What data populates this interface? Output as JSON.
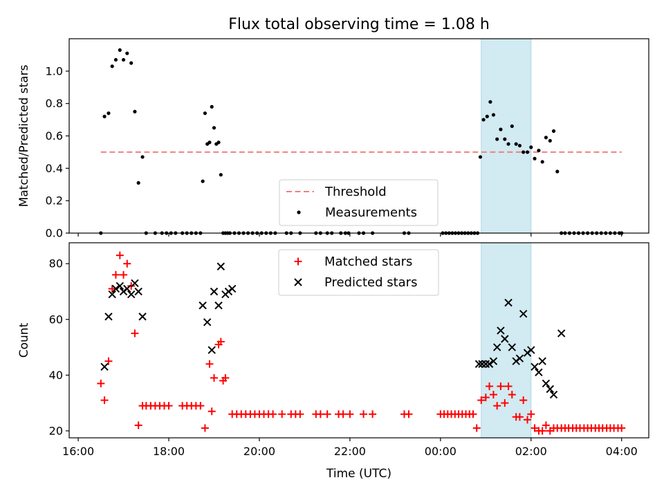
{
  "chart_data": {
    "type": "scatter",
    "title": "Flux total observing time = 1.08 h",
    "xlabel": "Time (UTC)",
    "x_unit": "hours since 16:00 UTC",
    "xlim": [
      -0.2,
      12.6
    ],
    "xticks": [
      {
        "v": 0,
        "label": "16:00"
      },
      {
        "v": 2,
        "label": "18:00"
      },
      {
        "v": 4,
        "label": "20:00"
      },
      {
        "v": 6,
        "label": "22:00"
      },
      {
        "v": 8,
        "label": "00:00"
      },
      {
        "v": 10,
        "label": "02:00"
      },
      {
        "v": 12,
        "label": "04:00"
      }
    ],
    "highlight_span": [
      8.9,
      10.0
    ],
    "colors": {
      "threshold": "#f08080",
      "highlight": "#add8e6",
      "matched": "#ff0000",
      "predicted": "#000000",
      "measurements": "#000000"
    },
    "panels": [
      {
        "ylabel": "Matched/Predicted stars",
        "ylim": [
          0,
          1.2
        ],
        "yticks": [
          {
            "v": 0,
            "label": "0.0"
          },
          {
            "v": 0.2,
            "label": "0.2"
          },
          {
            "v": 0.4,
            "label": "0.4"
          },
          {
            "v": 0.6,
            "label": "0.6"
          },
          {
            "v": 0.8,
            "label": "0.8"
          },
          {
            "v": 1.0,
            "label": "1.0"
          }
        ],
        "show_xticklabels": false,
        "legend": {
          "position": "lower-center",
          "entries": [
            {
              "name": "Threshold",
              "kind": "dashed-line",
              "color": "#f08080"
            },
            {
              "name": "Measurements",
              "kind": "dot",
              "color": "#000000"
            }
          ]
        },
        "series": [
          {
            "name": "Threshold",
            "kind": "dashed-line",
            "x": [
              0.5,
              12.0
            ],
            "y": [
              0.5,
              0.5
            ]
          },
          {
            "name": "Measurements",
            "kind": "dot",
            "x": [
              0.5,
              0.58,
              0.67,
              0.75,
              0.83,
              0.92,
              1.0,
              1.08,
              1.17,
              1.25,
              1.33,
              1.42,
              1.5,
              1.7,
              1.85,
              1.95,
              2.05,
              2.15,
              2.3,
              2.4,
              2.5,
              2.6,
              2.7,
              2.75,
              2.8,
              2.85,
              2.9,
              2.95,
              3.0,
              3.05,
              3.1,
              3.15,
              3.2,
              3.25,
              3.3,
              3.35,
              3.45,
              3.55,
              3.65,
              3.75,
              3.85,
              3.95,
              4.05,
              4.15,
              4.25,
              4.35,
              4.6,
              4.7,
              4.9,
              5.25,
              5.35,
              5.5,
              5.6,
              5.8,
              5.9,
              5.97,
              6.2,
              6.3,
              6.5,
              7.2,
              7.3,
              8.05,
              8.12,
              8.19,
              8.26,
              8.33,
              8.4,
              8.47,
              8.54,
              8.61,
              8.68,
              8.75,
              8.82,
              8.88,
              8.95,
              9.03,
              9.1,
              9.17,
              9.25,
              9.33,
              9.42,
              9.5,
              9.58,
              9.67,
              9.75,
              9.83,
              9.92,
              10.0,
              10.08,
              10.17,
              10.25,
              10.33,
              10.42,
              10.5,
              10.58,
              10.67,
              10.75,
              10.85,
              10.95,
              11.05,
              11.15,
              11.25,
              11.35,
              11.45,
              11.55,
              11.65,
              11.75,
              11.85,
              11.95,
              12.0
            ],
            "y": [
              0.0,
              0.72,
              0.74,
              1.03,
              1.07,
              1.13,
              1.07,
              1.11,
              1.05,
              0.75,
              0.31,
              0.47,
              0.0,
              0.0,
              0.0,
              0.0,
              0.0,
              0.0,
              0.0,
              0.0,
              0.0,
              0.0,
              0.0,
              0.32,
              0.74,
              0.55,
              0.56,
              0.78,
              0.65,
              0.55,
              0.56,
              0.36,
              0.0,
              0.0,
              0.0,
              0.0,
              0.0,
              0.0,
              0.0,
              0.0,
              0.0,
              0.0,
              0.0,
              0.0,
              0.0,
              0.0,
              0.0,
              0.0,
              0.0,
              0.0,
              0.0,
              0.0,
              0.0,
              0.0,
              0.0,
              0.0,
              0.0,
              0.0,
              0.0,
              0.0,
              0.0,
              0.0,
              0.0,
              0.0,
              0.0,
              0.0,
              0.0,
              0.0,
              0.0,
              0.0,
              0.0,
              0.0,
              0.0,
              0.47,
              0.7,
              0.72,
              0.81,
              0.73,
              0.58,
              0.64,
              0.58,
              0.55,
              0.66,
              0.55,
              0.54,
              0.5,
              0.5,
              0.53,
              0.46,
              0.51,
              0.44,
              0.59,
              0.57,
              0.63,
              0.38,
              0.0,
              0.0,
              0.0,
              0.0,
              0.0,
              0.0,
              0.0,
              0.0,
              0.0,
              0.0,
              0.0,
              0.0,
              0.0,
              0.0,
              0.0
            ]
          }
        ]
      },
      {
        "ylabel": "Count",
        "ylim": [
          17.5,
          87.5
        ],
        "yticks": [
          {
            "v": 20,
            "label": "20"
          },
          {
            "v": 40,
            "label": "40"
          },
          {
            "v": 60,
            "label": "60"
          },
          {
            "v": 80,
            "label": "80"
          }
        ],
        "show_xticklabels": true,
        "legend": {
          "position": "upper-center",
          "entries": [
            {
              "name": "Matched stars",
              "kind": "plus",
              "color": "#ff0000"
            },
            {
              "name": "Predicted stars",
              "kind": "x",
              "color": "#000000"
            }
          ]
        },
        "series": [
          {
            "name": "Matched stars",
            "kind": "plus",
            "x": [
              0.5,
              0.58,
              0.67,
              0.75,
              0.83,
              0.92,
              1.0,
              1.08,
              1.17,
              1.25,
              1.33,
              1.42,
              1.5,
              1.6,
              1.7,
              1.8,
              1.9,
              2.0,
              2.3,
              2.4,
              2.5,
              2.6,
              2.7,
              2.8,
              2.9,
              2.95,
              3.0,
              3.1,
              3.15,
              3.2,
              3.25,
              3.4,
              3.5,
              3.6,
              3.7,
              3.8,
              3.9,
              4.0,
              4.1,
              4.2,
              4.3,
              4.5,
              4.7,
              4.8,
              4.9,
              5.25,
              5.35,
              5.5,
              5.75,
              5.85,
              6.0,
              6.3,
              6.5,
              7.2,
              7.3,
              8.0,
              8.08,
              8.16,
              8.24,
              8.32,
              8.4,
              8.48,
              8.56,
              8.64,
              8.72,
              8.8,
              8.9,
              9.0,
              9.08,
              9.17,
              9.25,
              9.33,
              9.42,
              9.5,
              9.58,
              9.67,
              9.75,
              9.83,
              9.92,
              10.0,
              10.08,
              10.17,
              10.25,
              10.33,
              10.42,
              10.5,
              10.58,
              10.67,
              10.75,
              10.83,
              10.92,
              11.0,
              11.08,
              11.17,
              11.25,
              11.33,
              11.42,
              11.5,
              11.58,
              11.67,
              11.75,
              11.83,
              11.92,
              12.0
            ],
            "y": [
              37,
              31,
              45,
              71,
              76,
              83,
              76,
              80,
              72,
              55,
              22,
              29,
              29,
              29,
              29,
              29,
              29,
              29,
              29,
              29,
              29,
              29,
              29,
              21,
              44,
              27,
              39,
              51,
              52,
              38,
              39,
              26,
              26,
              26,
              26,
              26,
              26,
              26,
              26,
              26,
              26,
              26,
              26,
              26,
              26,
              26,
              26,
              26,
              26,
              26,
              26,
              26,
              26,
              26,
              26,
              26,
              26,
              26,
              26,
              26,
              26,
              26,
              26,
              26,
              26,
              21,
              31,
              32,
              36,
              33,
              29,
              36,
              30,
              36,
              33,
              25,
              25,
              31,
              24,
              26,
              21,
              20,
              20,
              22,
              20,
              21,
              21,
              21,
              21,
              21,
              21,
              21,
              21,
              21,
              21,
              21,
              21,
              21,
              21,
              21,
              21,
              21,
              21,
              21
            ]
          },
          {
            "name": "Predicted stars",
            "kind": "x",
            "x": [
              0.58,
              0.67,
              0.75,
              0.83,
              0.92,
              1.0,
              1.08,
              1.17,
              1.25,
              1.33,
              1.42,
              2.75,
              2.85,
              2.95,
              3.0,
              3.1,
              3.15,
              3.25,
              3.32,
              3.4,
              8.85,
              8.92,
              9.0,
              9.08,
              9.17,
              9.25,
              9.33,
              9.42,
              9.5,
              9.58,
              9.67,
              9.75,
              9.83,
              9.92,
              10.0,
              10.08,
              10.17,
              10.25,
              10.33,
              10.42,
              10.5,
              10.67
            ],
            "y": [
              43,
              61,
              69,
              71,
              72,
              70,
              71,
              69,
              73,
              70,
              61,
              65,
              59,
              49,
              70,
              65,
              79,
              69,
              70,
              71,
              44,
              44,
              44,
              44,
              45,
              50,
              56,
              53,
              66,
              50,
              45,
              46,
              62,
              48,
              49,
              43,
              41,
              45,
              37,
              35,
              33,
              55
            ]
          }
        ]
      }
    ]
  }
}
